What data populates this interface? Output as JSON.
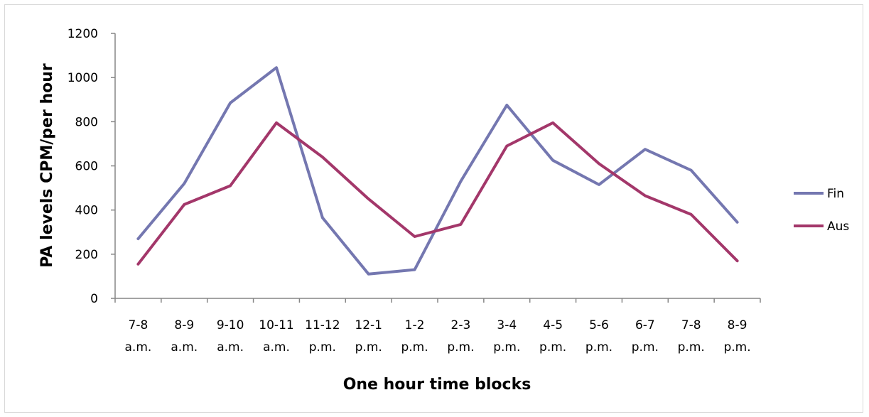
{
  "chart_data": {
    "type": "line",
    "title": "",
    "xlabel": "One hour time blocks",
    "ylabel": "PA levels CPM/per hour",
    "ylim": [
      0,
      1200
    ],
    "yticks": [
      0,
      200,
      400,
      600,
      800,
      1000,
      1200
    ],
    "grid": false,
    "legend_position": "right",
    "categories": [
      [
        "7-8",
        "a.m."
      ],
      [
        "8-9",
        "a.m."
      ],
      [
        "9-10",
        "a.m."
      ],
      [
        "10-11",
        "a.m."
      ],
      [
        "11-12",
        "p.m."
      ],
      [
        "12-1",
        "p.m."
      ],
      [
        "1-2",
        "p.m."
      ],
      [
        "2-3",
        "p.m."
      ],
      [
        "3-4",
        "p.m."
      ],
      [
        "4-5",
        "p.m."
      ],
      [
        "5-6",
        "p.m."
      ],
      [
        "6-7",
        "p.m."
      ],
      [
        "7-8",
        "p.m."
      ],
      [
        "8-9",
        "p.m."
      ]
    ],
    "series": [
      {
        "name": "Fin",
        "color": "#7477b0",
        "values": [
          270,
          520,
          885,
          1045,
          365,
          110,
          130,
          530,
          875,
          625,
          515,
          675,
          580,
          345
        ]
      },
      {
        "name": "Aus",
        "color": "#a3376a",
        "values": [
          155,
          425,
          510,
          795,
          640,
          450,
          280,
          335,
          690,
          795,
          610,
          465,
          380,
          170
        ]
      }
    ]
  }
}
